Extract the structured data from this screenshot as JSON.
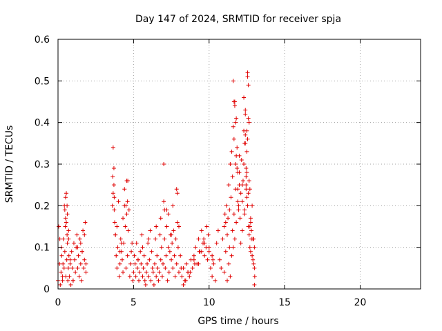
{
  "chart_data": {
    "type": "scatter",
    "title": "Day 147 of 2024, SRMTID for receiver spja",
    "xlabel": "GPS time / hours",
    "ylabel": "SRMTID / TECUs",
    "xlim": [
      0,
      24
    ],
    "ylim": [
      0,
      0.6
    ],
    "xticks": [
      "0",
      "5",
      "10",
      "15",
      "20"
    ],
    "yticks": [
      "0",
      "0.1",
      "0.2",
      "0.3",
      "0.4",
      "0.5",
      "0.6"
    ],
    "grid": true,
    "marker": "plus",
    "color": "#e00000",
    "series": [
      {
        "x": [
          0.0,
          0.05,
          0.1,
          0.12,
          0.15,
          0.2,
          0.22,
          0.25,
          0.3,
          0.33,
          0.35,
          0.4,
          0.42,
          0.45,
          0.48,
          0.5,
          0.52,
          0.55,
          0.58,
          0.6,
          0.62,
          0.65,
          0.68,
          0.7,
          0.72,
          0.75,
          0.8,
          0.85,
          0.9,
          0.95,
          1.0,
          1.05,
          1.1,
          1.15,
          1.2,
          1.25,
          1.3,
          1.35,
          1.4,
          1.45,
          1.5,
          1.55,
          1.6,
          1.65,
          1.7,
          1.75,
          1.8,
          1.85,
          0.45,
          0.5,
          0.55,
          0.6,
          0.62,
          0.7,
          1.5,
          1.6,
          1.75,
          1.85,
          0.3,
          0.8,
          1.0,
          1.3,
          3.6,
          3.62,
          3.65,
          3.7,
          3.72,
          3.75,
          3.8,
          3.85,
          3.9,
          3.95,
          4.0,
          4.05,
          4.1,
          4.15,
          4.2,
          4.25,
          4.3,
          4.35,
          4.4,
          4.45,
          4.5,
          4.55,
          4.6,
          4.65,
          4.7,
          4.75,
          4.8,
          4.85,
          4.9,
          4.95,
          5.0,
          3.65,
          3.7,
          3.72,
          3.8,
          4.2,
          4.3,
          4.4,
          4.5,
          4.55,
          4.6,
          4.62,
          3.9,
          4.1,
          5.05,
          5.1,
          5.15,
          5.2,
          5.25,
          5.3,
          5.35,
          5.4,
          5.45,
          5.5,
          5.55,
          5.6,
          5.65,
          5.7,
          5.75,
          5.8,
          5.85,
          5.9,
          5.95,
          6.0,
          6.05,
          6.1,
          6.15,
          6.2,
          6.25,
          6.3,
          6.35,
          6.4,
          6.45,
          6.5,
          6.55,
          6.6,
          6.65,
          6.7,
          6.75,
          6.8,
          6.85,
          6.9,
          6.95,
          7.0,
          7.05,
          7.1,
          7.15,
          7.2,
          7.25,
          7.3,
          7.35,
          7.4,
          7.45,
          7.5,
          7.55,
          7.6,
          7.65,
          7.7,
          7.75,
          7.8,
          7.85,
          7.9,
          7.95,
          8.0,
          5.3,
          5.6,
          6.0,
          6.5,
          7.0,
          7.05,
          7.3,
          7.6,
          7.85,
          7.9,
          8.0,
          6.8,
          7.2,
          7.5,
          8.1,
          8.2,
          8.3,
          8.4,
          8.5,
          8.6,
          8.7,
          8.8,
          8.9,
          9.0,
          9.1,
          9.2,
          9.3,
          9.4,
          9.5,
          9.6,
          9.7,
          9.8,
          9.9,
          10.0,
          10.1,
          10.2,
          10.3,
          10.4,
          8.3,
          8.6,
          9.0,
          9.3,
          9.5,
          9.7,
          9.85,
          10.0,
          10.2,
          8.15,
          8.45,
          8.75,
          9.05,
          9.35,
          9.65,
          9.95,
          10.25,
          10.5,
          10.6,
          10.7,
          10.8,
          10.9,
          11.0,
          11.05,
          11.1,
          11.15,
          11.2,
          11.25,
          11.3,
          11.35,
          11.4,
          11.45,
          11.5,
          11.55,
          11.6,
          11.65,
          11.7,
          11.75,
          11.8,
          11.85,
          11.9,
          11.95,
          12.0,
          12.05,
          12.1,
          12.15,
          12.2,
          12.25,
          12.3,
          12.35,
          12.4,
          12.45,
          12.5,
          12.55,
          12.6,
          12.65,
          12.7,
          12.75,
          12.8,
          12.85,
          12.9,
          12.95,
          13.0,
          13.02,
          11.0,
          11.1,
          11.2,
          11.3,
          11.35,
          11.4,
          11.5,
          11.55,
          11.6,
          11.65,
          11.7,
          11.75,
          11.8,
          11.85,
          11.9,
          11.95,
          12.0,
          12.1,
          12.2,
          12.3,
          12.35,
          12.4,
          12.45,
          12.5,
          12.55,
          12.6,
          12.65,
          12.7,
          12.75,
          12.8,
          12.9,
          13.0,
          11.6,
          11.65,
          11.7,
          11.75,
          12.3,
          12.4,
          12.5,
          12.55,
          12.6,
          12.55,
          12.55,
          12.65,
          12.5,
          12.45,
          12.4,
          11.8,
          11.9,
          12.0,
          12.2,
          12.35,
          12.7,
          12.75,
          12.85,
          12.95,
          13.0,
          12.6,
          12.45
        ],
        "y": [
          0.02,
          0.15,
          0.06,
          0.12,
          0.01,
          0.04,
          0.1,
          0.08,
          0.02,
          0.06,
          0.12,
          0.05,
          0.2,
          0.09,
          0.15,
          0.17,
          0.03,
          0.23,
          0.07,
          0.13,
          0.11,
          0.02,
          0.05,
          0.14,
          0.08,
          0.03,
          0.06,
          0.01,
          0.09,
          0.05,
          0.02,
          0.11,
          0.07,
          0.04,
          0.1,
          0.13,
          0.05,
          0.08,
          0.03,
          0.12,
          0.06,
          0.02,
          0.09,
          0.14,
          0.05,
          0.07,
          0.16,
          0.04,
          0.19,
          0.22,
          0.16,
          0.2,
          0.18,
          0.12,
          0.11,
          0.09,
          0.13,
          0.06,
          0.03,
          0.07,
          0.02,
          0.1,
          0.2,
          0.27,
          0.34,
          0.29,
          0.22,
          0.16,
          0.13,
          0.08,
          0.05,
          0.1,
          0.21,
          0.03,
          0.06,
          0.12,
          0.09,
          0.07,
          0.04,
          0.11,
          0.2,
          0.15,
          0.05,
          0.26,
          0.08,
          0.14,
          0.19,
          0.03,
          0.06,
          0.09,
          0.11,
          0.02,
          0.04,
          0.23,
          0.25,
          0.19,
          0.13,
          0.11,
          0.17,
          0.24,
          0.2,
          0.18,
          0.21,
          0.26,
          0.15,
          0.09,
          0.08,
          0.06,
          0.03,
          0.11,
          0.05,
          0.07,
          0.02,
          0.04,
          0.09,
          0.06,
          0.13,
          0.03,
          0.05,
          0.08,
          0.02,
          0.01,
          0.04,
          0.06,
          0.11,
          0.03,
          0.07,
          0.14,
          0.02,
          0.09,
          0.05,
          0.04,
          0.01,
          0.06,
          0.12,
          0.03,
          0.08,
          0.05,
          0.02,
          0.04,
          0.13,
          0.07,
          0.1,
          0.03,
          0.06,
          0.21,
          0.12,
          0.05,
          0.08,
          0.15,
          0.02,
          0.1,
          0.04,
          0.09,
          0.13,
          0.07,
          0.11,
          0.05,
          0.14,
          0.08,
          0.03,
          0.12,
          0.06,
          0.16,
          0.1,
          0.04,
          0.07,
          0.1,
          0.12,
          0.15,
          0.3,
          0.19,
          0.18,
          0.2,
          0.24,
          0.23,
          0.15,
          0.17,
          0.19,
          0.13,
          0.08,
          0.03,
          0.05,
          0.02,
          0.06,
          0.04,
          0.03,
          0.07,
          0.05,
          0.08,
          0.1,
          0.06,
          0.12,
          0.09,
          0.14,
          0.11,
          0.08,
          0.1,
          0.07,
          0.09,
          0.05,
          0.03,
          0.06,
          0.02,
          0.01,
          0.04,
          0.07,
          0.06,
          0.09,
          0.11,
          0.15,
          0.1,
          0.08,
          0.05,
          0.02,
          0.04,
          0.06,
          0.09,
          0.12,
          0.13,
          0.07,
          0.11,
          0.14,
          0.07,
          0.05,
          0.12,
          0.15,
          0.18,
          0.16,
          0.2,
          0.13,
          0.17,
          0.25,
          0.19,
          0.3,
          0.22,
          0.33,
          0.27,
          0.39,
          0.36,
          0.45,
          0.3,
          0.41,
          0.34,
          0.24,
          0.2,
          0.28,
          0.17,
          0.23,
          0.31,
          0.21,
          0.26,
          0.38,
          0.35,
          0.42,
          0.27,
          0.22,
          0.2,
          0.15,
          0.13,
          0.1,
          0.16,
          0.14,
          0.08,
          0.12,
          0.06,
          0.05,
          0.03,
          0.04,
          0.09,
          0.02,
          0.06,
          0.1,
          0.03,
          0.08,
          0.14,
          0.1,
          0.18,
          0.12,
          0.24,
          0.16,
          0.29,
          0.21,
          0.19,
          0.25,
          0.11,
          0.14,
          0.3,
          0.18,
          0.35,
          0.24,
          0.28,
          0.2,
          0.23,
          0.26,
          0.15,
          0.09,
          0.12,
          0.07,
          0.01,
          0.5,
          0.45,
          0.44,
          0.4,
          0.46,
          0.43,
          0.38,
          0.51,
          0.49,
          0.36,
          0.52,
          0.4,
          0.33,
          0.29,
          0.37,
          0.32,
          0.28,
          0.32,
          0.25,
          0.19,
          0.24,
          0.17,
          0.2,
          0.12,
          0.1,
          0.41,
          0.25
        ]
      }
    ]
  }
}
